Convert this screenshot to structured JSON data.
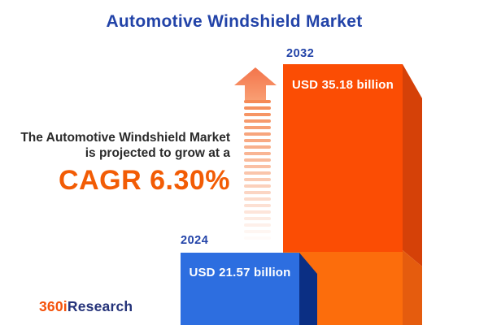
{
  "title": "Automotive Windshield Market",
  "promo": {
    "line1": "The Automotive Windshield Market",
    "line2": "is projected to grow at a",
    "cagr": "CAGR 6.30%"
  },
  "bars": [
    {
      "year": "2024",
      "value_label": "USD 21.57 billion"
    },
    {
      "year": "2032",
      "value_label": "USD 35.18 billion"
    }
  ],
  "logo": {
    "prefix": "360i",
    "suffix": "Research"
  },
  "colors": {
    "title_blue": "#2243a8",
    "text_dark": "#2b2b2b",
    "cagr_orange": "#f25c05",
    "bar_2032_face": "#fb4d04",
    "bar_2032_face_lower": "#fc6d0c",
    "bar_2032_side": "#d54108",
    "bar_2032_side_lower": "#e55c0e",
    "bar_2024_face": "#2d6ee0",
    "bar_2024_side": "#0b2f84",
    "arrow_orange": "#f58a56",
    "logo_orange": "#f4520b",
    "logo_blue": "#25337a"
  },
  "chart_data": {
    "type": "bar",
    "title": "Automotive Windshield Market",
    "categories": [
      "2024",
      "2032"
    ],
    "values": [
      21.57,
      35.18
    ],
    "value_labels": [
      "USD 21.57 billion",
      "USD 35.18 billion"
    ],
    "unit": "USD billion",
    "cagr_percent": 6.3,
    "annotation": "The Automotive Windshield Market is projected to grow at a CAGR 6.30%",
    "legend": "none",
    "grid": false,
    "orientation": "vertical",
    "style": "3d-infographic"
  }
}
